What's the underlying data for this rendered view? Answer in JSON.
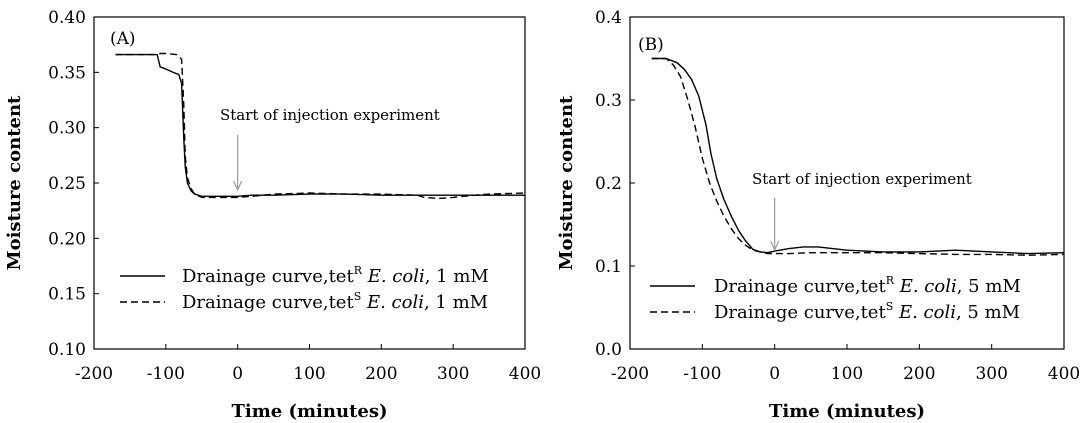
{
  "chart_data": [
    {
      "type": "line",
      "panel_label": "(A)",
      "xlabel": "Time (minutes)",
      "ylabel": "Moisture content",
      "xlim": [
        -200,
        400
      ],
      "ylim": [
        0.1,
        0.4
      ],
      "x_ticks": [
        "-200",
        "-100",
        "0",
        "100",
        "200",
        "300",
        "400"
      ],
      "y_ticks": [
        "0.10",
        "0.15",
        "0.20",
        "0.25",
        "0.30",
        "0.35",
        "0.40"
      ],
      "annotation": {
        "text": "Start of injection experiment",
        "x": 0
      },
      "legend_position": "bottom-left",
      "series": [
        {
          "legend": {
            "prefix": "Drainage curve,tet",
            "sup": "R",
            "italic": "E. coli",
            "suffix": ", 1 mM"
          },
          "style": "solid",
          "x": [
            -170,
            -112,
            -108,
            -100,
            -90,
            -82,
            -78,
            -75,
            -73,
            -70,
            -65,
            -60,
            -50,
            -40,
            -30,
            -20,
            -10,
            0,
            20,
            50,
            100,
            150,
            200,
            250,
            300,
            350,
            400
          ],
          "y": [
            0.366,
            0.366,
            0.355,
            0.353,
            0.35,
            0.348,
            0.34,
            0.29,
            0.265,
            0.25,
            0.243,
            0.24,
            0.238,
            0.238,
            0.238,
            0.238,
            0.238,
            0.238,
            0.239,
            0.239,
            0.24,
            0.24,
            0.239,
            0.239,
            0.239,
            0.239,
            0.239
          ]
        },
        {
          "legend": {
            "prefix": "Drainage curve,tet",
            "sup": "S",
            "italic": "E. coli",
            "suffix": ", 1 mM"
          },
          "style": "dashed",
          "x": [
            -170,
            -110,
            -108,
            -100,
            -85,
            -78,
            -75,
            -73,
            -70,
            -65,
            -60,
            -50,
            -40,
            -30,
            -20,
            -10,
            0,
            20,
            50,
            100,
            150,
            200,
            250,
            260,
            280,
            300,
            330,
            350,
            400
          ],
          "y": [
            0.366,
            0.366,
            0.367,
            0.367,
            0.366,
            0.362,
            0.32,
            0.275,
            0.255,
            0.245,
            0.24,
            0.237,
            0.237,
            0.237,
            0.237,
            0.237,
            0.237,
            0.238,
            0.24,
            0.241,
            0.24,
            0.24,
            0.239,
            0.237,
            0.236,
            0.237,
            0.239,
            0.24,
            0.241
          ]
        }
      ]
    },
    {
      "type": "line",
      "panel_label": "(B)",
      "xlabel": "Time (minutes)",
      "ylabel": "Moisture content",
      "xlim": [
        -200,
        400
      ],
      "ylim": [
        0.0,
        0.4
      ],
      "x_ticks": [
        "-200",
        "-100",
        "0",
        "100",
        "200",
        "300",
        "400"
      ],
      "y_ticks": [
        "0.0",
        "0.1",
        "0.2",
        "0.3",
        "0.4"
      ],
      "annotation": {
        "text": "Start of injection experiment",
        "x": 0
      },
      "legend_position": "bottom-left",
      "series": [
        {
          "legend": {
            "prefix": "Drainage curve,tet",
            "sup": "R",
            "italic": "E. coli",
            "suffix": ", 5 mM"
          },
          "style": "solid",
          "x": [
            -170,
            -150,
            -135,
            -125,
            -115,
            -105,
            -95,
            -88,
            -80,
            -70,
            -60,
            -50,
            -40,
            -30,
            -20,
            -10,
            0,
            20,
            40,
            60,
            80,
            100,
            150,
            200,
            250,
            300,
            350,
            400
          ],
          "y": [
            0.35,
            0.35,
            0.345,
            0.337,
            0.325,
            0.305,
            0.27,
            0.235,
            0.205,
            0.18,
            0.16,
            0.143,
            0.13,
            0.12,
            0.117,
            0.116,
            0.118,
            0.121,
            0.123,
            0.123,
            0.121,
            0.119,
            0.117,
            0.117,
            0.119,
            0.117,
            0.115,
            0.116
          ]
        },
        {
          "legend": {
            "prefix": "Drainage curve,tet",
            "sup": "S",
            "italic": "E. coli",
            "suffix": ", 5 mM"
          },
          "style": "dashed",
          "x": [
            -170,
            -150,
            -140,
            -130,
            -120,
            -110,
            -100,
            -90,
            -80,
            -70,
            -60,
            -50,
            -40,
            -30,
            -20,
            -10,
            0,
            20,
            50,
            100,
            150,
            200,
            250,
            300,
            350,
            400
          ],
          "y": [
            0.35,
            0.35,
            0.342,
            0.328,
            0.3,
            0.268,
            0.23,
            0.2,
            0.178,
            0.16,
            0.145,
            0.133,
            0.125,
            0.119,
            0.117,
            0.115,
            0.115,
            0.115,
            0.116,
            0.116,
            0.116,
            0.115,
            0.114,
            0.114,
            0.113,
            0.114
          ]
        }
      ]
    }
  ]
}
